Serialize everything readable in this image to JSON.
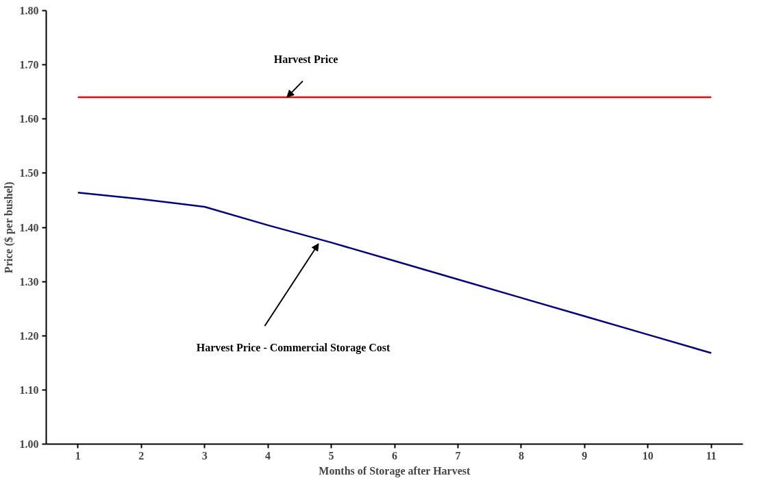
{
  "chart_data": {
    "type": "line",
    "xlabel": "Months of Storage after Harvest",
    "ylabel": "Price ($ per bushel)",
    "x": [
      1,
      2,
      3,
      4,
      5,
      6,
      7,
      8,
      9,
      10,
      11
    ],
    "series": [
      {
        "color": "#ff0000",
        "values": [
          1.64,
          1.64,
          1.64,
          1.64,
          1.64,
          1.64,
          1.64,
          1.64,
          1.64,
          1.64,
          1.64
        ]
      },
      {
        "color": "#000080",
        "values": [
          1.464,
          1.452,
          1.438,
          1.404,
          1.372,
          1.338,
          1.304,
          1.27,
          1.236,
          1.202,
          1.168
        ]
      }
    ],
    "xlim": [
      0.5,
      11.5
    ],
    "xticks": [
      1,
      2,
      3,
      4,
      5,
      6,
      7,
      8,
      9,
      10,
      11
    ],
    "ylim": [
      1.0,
      1.8
    ],
    "yticks": [
      {
        "value": 1.0,
        "label": "1.00"
      },
      {
        "value": 1.1,
        "label": "1.10"
      },
      {
        "value": 1.2,
        "label": "1.20"
      },
      {
        "value": 1.3,
        "label": "1.30"
      },
      {
        "value": 1.4,
        "label": "1.40"
      },
      {
        "value": 1.5,
        "label": "1.50"
      },
      {
        "value": 1.6,
        "label": "1.60"
      },
      {
        "value": 1.7,
        "label": "1.70"
      },
      {
        "value": 1.8,
        "label": "1.80"
      }
    ],
    "annotations": [
      {
        "text": "Harvest Price",
        "x": 4.3,
        "y": 1.64
      },
      "Harvest Price - Commercial Storage Cost"
    ],
    "grid": false,
    "marker": "none",
    "line_style": "solid"
  }
}
